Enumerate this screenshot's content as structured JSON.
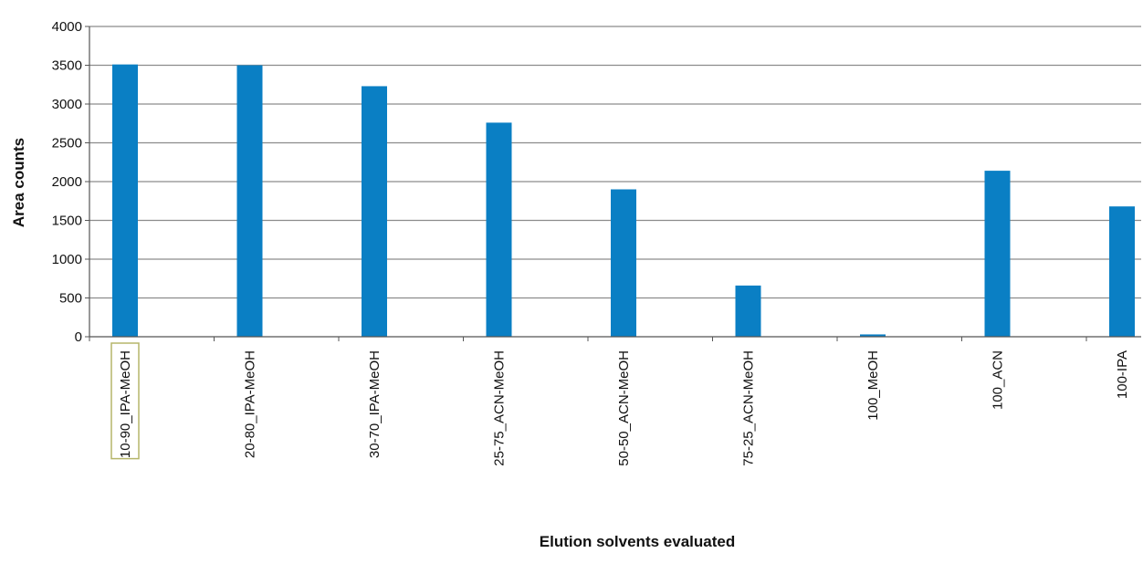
{
  "chart_data": {
    "type": "bar",
    "title": "",
    "xlabel": "Elution solvents evaluated",
    "ylabel": "Area counts",
    "categories": [
      "10-90_IPA-MeOH",
      "20-80_IPA-MeOH",
      "30-70_IPA-MeOH",
      "25-75_ACN-MeOH",
      "50-50_ACN-MeOH",
      "75-25_ACN-MeOH",
      "100_MeOH",
      "100_ACN",
      "100-IPA"
    ],
    "values": [
      3510,
      3500,
      3230,
      2760,
      1900,
      660,
      30,
      2140,
      1680
    ],
    "ylim": [
      0,
      4000
    ],
    "yticks": [
      0,
      500,
      1000,
      1500,
      2000,
      2500,
      3000,
      3500,
      4000
    ],
    "grid": true,
    "legend": "none",
    "selected_category": "10-90_IPA-MeOH",
    "colors": {
      "bar": "#0a7fc4",
      "grid": "#8c8c8c",
      "selection": "#b5b56a"
    }
  }
}
